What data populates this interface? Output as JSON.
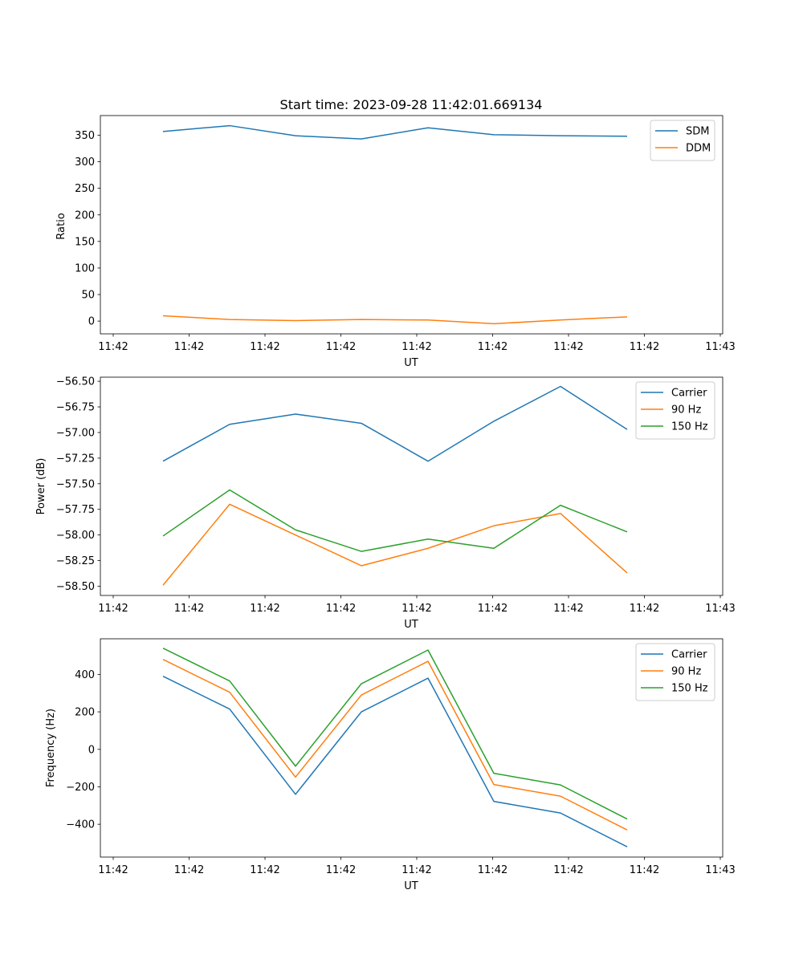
{
  "title": "Start time: 2023-09-28 11:42:01.669134",
  "colors": {
    "blue": "#1f77b4",
    "orange": "#ff7f0e",
    "green": "#2ca02c"
  },
  "chart_data": [
    {
      "type": "line",
      "ylabel": "Ratio",
      "xlabel": "UT",
      "ylim": [
        -24,
        387
      ],
      "yticks": [
        0,
        50,
        100,
        150,
        200,
        250,
        300,
        350
      ],
      "ytick_labels": [
        "0",
        "50",
        "100",
        "150",
        "200",
        "250",
        "300",
        "350"
      ],
      "xtick_labels": [
        "11:42",
        "11:42",
        "11:42",
        "11:42",
        "11:42",
        "11:42",
        "11:42",
        "11:42",
        "11:43"
      ],
      "series": [
        {
          "name": "SDM",
          "color": "#1f77b4",
          "values": [
            357,
            368,
            349,
            343,
            364,
            351,
            349,
            348
          ]
        },
        {
          "name": "DDM",
          "color": "#ff7f0e",
          "values": [
            10,
            3,
            1,
            3,
            2,
            -5,
            2,
            8
          ]
        }
      ],
      "legend": "top-right"
    },
    {
      "type": "line",
      "ylabel": "Power (dB)",
      "xlabel": "UT",
      "ylim": [
        -58.59,
        -56.46
      ],
      "yticks": [
        -58.5,
        -58.25,
        -58.0,
        -57.75,
        -57.5,
        -57.25,
        -57.0,
        -56.75,
        -56.5
      ],
      "ytick_labels": [
        "−58.50",
        "−58.25",
        "−58.00",
        "−57.75",
        "−57.50",
        "−57.25",
        "−57.00",
        "−56.75",
        "−56.50"
      ],
      "xtick_labels": [
        "11:42",
        "11:42",
        "11:42",
        "11:42",
        "11:42",
        "11:42",
        "11:42",
        "11:42",
        "11:43"
      ],
      "series": [
        {
          "name": "Carrier",
          "color": "#1f77b4",
          "values": [
            -57.28,
            -56.92,
            -56.82,
            -56.91,
            -57.28,
            -56.89,
            -56.55,
            -56.97
          ]
        },
        {
          "name": "90 Hz",
          "color": "#ff7f0e",
          "values": [
            -58.49,
            -57.7,
            -58.0,
            -58.3,
            -58.13,
            -57.91,
            -57.79,
            -58.37
          ]
        },
        {
          "name": "150 Hz",
          "color": "#2ca02c",
          "values": [
            -58.01,
            -57.56,
            -57.95,
            -58.16,
            -58.04,
            -58.13,
            -57.71,
            -57.97
          ]
        }
      ],
      "legend": "top-right"
    },
    {
      "type": "line",
      "ylabel": "Frequency (Hz)",
      "xlabel": "UT",
      "ylim": [
        -575,
        590
      ],
      "yticks": [
        -400,
        -200,
        0,
        200,
        400
      ],
      "ytick_labels": [
        "−400",
        "−200",
        "0",
        "200",
        "400"
      ],
      "xtick_labels": [
        "11:42",
        "11:42",
        "11:42",
        "11:42",
        "11:42",
        "11:42",
        "11:42",
        "11:42",
        "11:43"
      ],
      "series": [
        {
          "name": "Carrier",
          "color": "#1f77b4",
          "values": [
            390,
            215,
            -240,
            200,
            380,
            -278,
            -340,
            -520
          ]
        },
        {
          "name": "90 Hz",
          "color": "#ff7f0e",
          "values": [
            480,
            305,
            -148,
            290,
            470,
            -188,
            -250,
            -430
          ]
        },
        {
          "name": "150 Hz",
          "color": "#2ca02c",
          "values": [
            540,
            365,
            -90,
            350,
            530,
            -128,
            -190,
            -372
          ]
        }
      ],
      "legend": "top-right"
    }
  ]
}
